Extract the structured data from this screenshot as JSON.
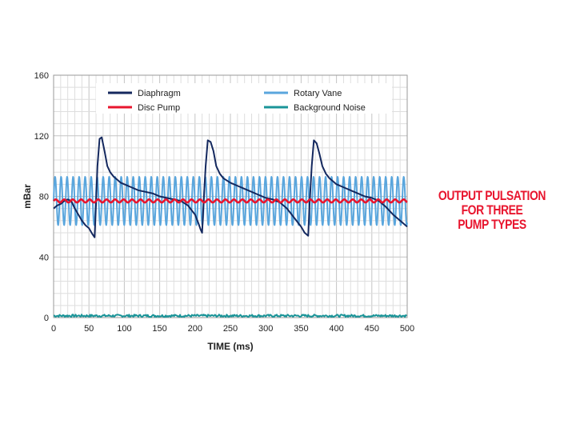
{
  "side_title": {
    "line1": "OUTPUT PULSATION",
    "line2": "FOR THREE",
    "line3": "PUMP TYPES"
  },
  "chart_data": {
    "type": "line",
    "title": "Output Pulsation for Three Pump Types",
    "xlabel": "TIME (ms)",
    "ylabel": "mBar",
    "xlim": [
      0,
      500
    ],
    "ylim": [
      0,
      160
    ],
    "x_ticks": [
      0,
      50,
      100,
      150,
      200,
      250,
      300,
      350,
      400,
      450,
      500
    ],
    "y_ticks": [
      0,
      40,
      80,
      120,
      160
    ],
    "grid": true,
    "legend_position": "top",
    "series": [
      {
        "name": "Diaphragm",
        "color": "#14285e",
        "x": [
          0,
          5,
          10,
          15,
          20,
          25,
          30,
          35,
          40,
          45,
          50,
          55,
          58,
          60,
          62,
          65,
          68,
          72,
          76,
          80,
          85,
          90,
          95,
          100,
          110,
          120,
          130,
          140,
          150,
          160,
          170,
          180,
          190,
          200,
          205,
          208,
          210,
          212,
          215,
          218,
          222,
          226,
          230,
          235,
          240,
          250,
          260,
          270,
          280,
          290,
          300,
          310,
          320,
          330,
          340,
          350,
          355,
          360,
          362,
          365,
          368,
          372,
          376,
          380,
          385,
          390,
          400,
          410,
          420,
          430,
          440,
          450,
          460,
          470,
          480,
          490,
          500
        ],
        "values": [
          72,
          74,
          75,
          77,
          78,
          77,
          72,
          68,
          64,
          61,
          59,
          55,
          53,
          75,
          100,
          118,
          119,
          110,
          100,
          96,
          93,
          91,
          89,
          88,
          86,
          84,
          83,
          82,
          80,
          79,
          78,
          77,
          74,
          68,
          62,
          58,
          56,
          75,
          100,
          117,
          116,
          110,
          100,
          95,
          92,
          89,
          87,
          85,
          83,
          81,
          79,
          78,
          76,
          72,
          66,
          60,
          56,
          54,
          75,
          100,
          117,
          115,
          108,
          100,
          95,
          92,
          88,
          86,
          84,
          82,
          80,
          79,
          77,
          73,
          68,
          64,
          60
        ]
      },
      {
        "name": "Rotary Vane",
        "color": "#5aa6dd",
        "model": "sine",
        "center": 77,
        "amplitude": 16,
        "period_ms": 8.5,
        "x_range": [
          0,
          500
        ]
      },
      {
        "name": "Disc Pump",
        "color": "#e8152e",
        "model": "sine",
        "center": 77,
        "amplitude": 1,
        "period_ms": 12,
        "x_range": [
          0,
          500
        ]
      },
      {
        "name": "Background Noise",
        "color": "#1a9498",
        "model": "noise",
        "center": 1.2,
        "amplitude": 0.8,
        "x_range": [
          0,
          500
        ]
      }
    ]
  }
}
